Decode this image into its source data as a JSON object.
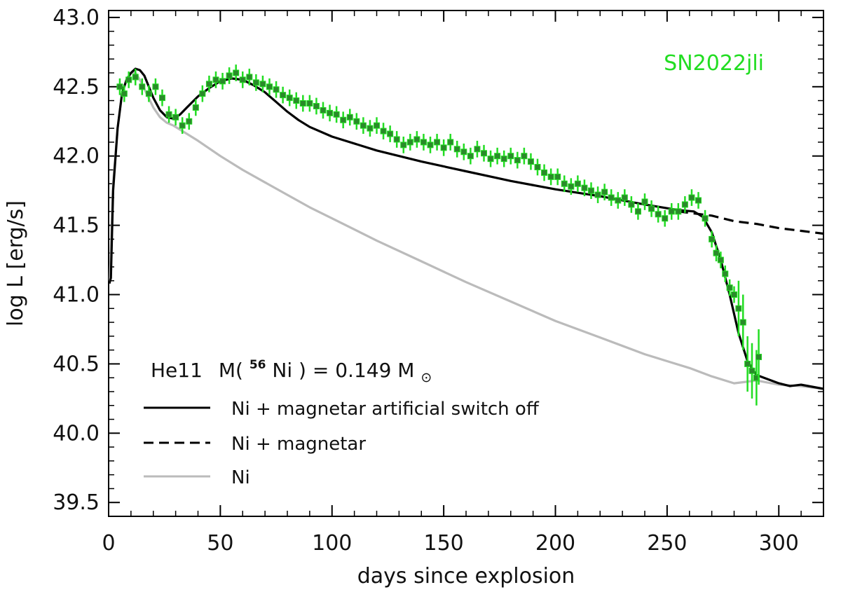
{
  "chart_data": {
    "type": "line",
    "title": "",
    "xlabel": "days since explosion",
    "ylabel": "log L [erg/s]",
    "xlim": [
      0,
      320
    ],
    "ylim": [
      39.4,
      43.05
    ],
    "x_ticks": [
      0,
      50,
      100,
      150,
      200,
      250,
      300
    ],
    "x_tick_labels": [
      "0",
      "50",
      "100",
      "150",
      "200",
      "250",
      "300"
    ],
    "y_ticks": [
      39.5,
      40.0,
      40.5,
      41.0,
      41.5,
      42.0,
      42.5,
      43.0
    ],
    "y_tick_labels": [
      "39.5",
      "40.0",
      "40.5",
      "41.0",
      "41.5",
      "42.0",
      "42.5",
      "43.0"
    ],
    "annotation": {
      "label": "SN2022jli",
      "color": "#22dd22"
    },
    "legend": {
      "placement": "bottom-left",
      "model_title": "He11",
      "nickel_mass_text_prefix": "M(",
      "nickel_isotope": "56",
      "nickel_element": "Ni",
      "nickel_mass_text_mid": ") = 0.149 M",
      "sun_symbol": "⊙",
      "entries": [
        {
          "label": "Ni + magnetar artificial switch off",
          "color": "#000000",
          "style": "solid"
        },
        {
          "label": "Ni + magnetar",
          "color": "#000000",
          "style": "dashed"
        },
        {
          "label": "Ni",
          "color": "#bbbbbb",
          "style": "solid"
        }
      ]
    },
    "series": [
      {
        "name": "Ni",
        "color": "#bbbbbb",
        "style": "solid",
        "x": [
          0.5,
          2,
          4,
          6,
          8,
          10,
          12,
          14,
          17,
          20,
          23,
          26,
          29,
          32,
          35,
          40,
          50,
          60,
          70,
          80,
          90,
          100,
          120,
          140,
          160,
          180,
          200,
          220,
          240,
          250,
          260,
          270,
          280,
          290,
          300,
          310,
          320
        ],
        "y": [
          41.08,
          41.8,
          42.2,
          42.45,
          42.55,
          42.6,
          42.6,
          42.55,
          42.45,
          42.35,
          42.28,
          42.24,
          42.22,
          42.19,
          42.16,
          42.11,
          42.0,
          41.9,
          41.81,
          41.72,
          41.63,
          41.55,
          41.39,
          41.24,
          41.09,
          40.95,
          40.81,
          40.69,
          40.57,
          40.52,
          40.47,
          40.41,
          40.36,
          40.38,
          40.35,
          40.34,
          40.32
        ]
      },
      {
        "name": "Ni + magnetar",
        "color": "#000000",
        "style": "dashed",
        "x": [
          255,
          260,
          265,
          270,
          280,
          290,
          300,
          310,
          320
        ],
        "y": [
          41.6,
          41.59,
          41.58,
          41.57,
          41.53,
          41.51,
          41.48,
          41.46,
          41.44
        ]
      },
      {
        "name": "Ni + magnetar artificial switch off",
        "color": "#000000",
        "style": "solid",
        "x": [
          0.3,
          1,
          2,
          4,
          6,
          8,
          10,
          12,
          14,
          16,
          18,
          20,
          23,
          26,
          29,
          32,
          35,
          40,
          45,
          50,
          55,
          60,
          65,
          70,
          75,
          80,
          85,
          90,
          100,
          120,
          140,
          160,
          180,
          200,
          220,
          240,
          255,
          262,
          266,
          270,
          274,
          278,
          282,
          286,
          290,
          300,
          305,
          310,
          320
        ],
        "y": [
          41.08,
          41.12,
          41.75,
          42.2,
          42.45,
          42.55,
          42.6,
          42.63,
          42.62,
          42.58,
          42.5,
          42.42,
          42.33,
          42.28,
          42.27,
          42.3,
          42.35,
          42.43,
          42.49,
          42.54,
          42.56,
          42.55,
          42.51,
          42.46,
          42.39,
          42.32,
          42.26,
          42.21,
          42.14,
          42.04,
          41.96,
          41.89,
          41.82,
          41.76,
          41.71,
          41.65,
          41.61,
          41.6,
          41.56,
          41.45,
          41.25,
          41.0,
          40.72,
          40.52,
          40.42,
          40.36,
          40.34,
          40.35,
          40.32
        ]
      },
      {
        "name": "SN2022jli",
        "color": "#2a8a2a",
        "errorbar_color": "#22dd22",
        "style": "markers",
        "x": [
          5,
          7,
          9,
          12,
          15,
          18,
          21,
          24,
          27,
          30,
          33,
          36,
          39,
          42,
          45,
          48,
          51,
          54,
          57,
          60,
          63,
          66,
          69,
          72,
          75,
          78,
          81,
          84,
          87,
          90,
          93,
          96,
          99,
          102,
          105,
          108,
          111,
          114,
          117,
          120,
          123,
          126,
          129,
          132,
          135,
          138,
          141,
          144,
          147,
          150,
          153,
          156,
          159,
          162,
          165,
          168,
          171,
          174,
          177,
          180,
          183,
          186,
          189,
          192,
          195,
          198,
          201,
          204,
          207,
          210,
          213,
          216,
          219,
          222,
          225,
          228,
          231,
          234,
          237,
          240,
          243,
          246,
          249,
          252,
          255,
          258,
          261,
          264,
          267,
          270,
          272,
          274,
          276,
          278,
          280,
          282,
          284,
          286,
          288,
          290,
          291
        ],
        "y": [
          42.5,
          42.45,
          42.55,
          42.57,
          42.5,
          42.45,
          42.5,
          42.42,
          42.3,
          42.28,
          42.22,
          42.25,
          42.35,
          42.45,
          42.52,
          42.55,
          42.54,
          42.58,
          42.6,
          42.55,
          42.57,
          42.53,
          42.52,
          42.5,
          42.48,
          42.44,
          42.42,
          42.4,
          42.38,
          42.38,
          42.36,
          42.33,
          42.31,
          42.3,
          42.26,
          42.28,
          42.25,
          42.22,
          42.2,
          42.22,
          42.18,
          42.16,
          42.12,
          42.08,
          42.1,
          42.12,
          42.1,
          42.08,
          42.1,
          42.06,
          42.1,
          42.05,
          42.03,
          42.0,
          42.05,
          42.02,
          41.98,
          42.0,
          41.98,
          42.0,
          41.97,
          42.0,
          41.96,
          41.92,
          41.88,
          41.85,
          41.85,
          41.8,
          41.78,
          41.8,
          41.77,
          41.75,
          41.72,
          41.74,
          41.7,
          41.68,
          41.7,
          41.65,
          41.6,
          41.67,
          41.62,
          41.58,
          41.55,
          41.6,
          41.6,
          41.65,
          41.7,
          41.68,
          41.55,
          41.4,
          41.3,
          41.25,
          41.15,
          41.05,
          41.0,
          40.9,
          40.8,
          40.5,
          40.45,
          40.4,
          40.55
        ]
      }
    ]
  }
}
